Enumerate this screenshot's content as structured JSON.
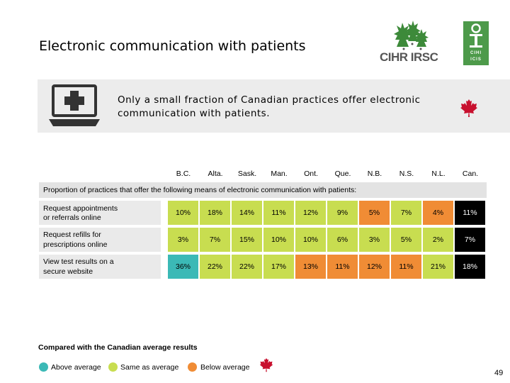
{
  "slide": {
    "title": "Electronic communication with patients",
    "banner_text": "Only a small fraction of Canadian practices offer electronic communication with patients.",
    "page_number": "49"
  },
  "logos": {
    "cihr": "CIHR IRSC",
    "cihi_top": "CIHI",
    "cihi_bottom": "ICIS"
  },
  "table": {
    "columns": [
      "B.C.",
      "Alta.",
      "Sask.",
      "Man.",
      "Ont.",
      "Que.",
      "N.B.",
      "N.S.",
      "N.L.",
      "Can."
    ],
    "section_label": "Proportion of practices that offer the following means of electronic communication with patients:",
    "rows": [
      {
        "label_line1": "Request appointments",
        "label_line2": "or referrals online",
        "values": [
          "10%",
          "18%",
          "14%",
          "11%",
          "12%",
          "9%",
          "5%",
          "7%",
          "4%",
          "11%"
        ],
        "status": [
          "same",
          "same",
          "same",
          "same",
          "same",
          "same",
          "below",
          "same",
          "below",
          "canada"
        ]
      },
      {
        "label_line1": "Request refills for",
        "label_line2": "prescriptions online",
        "values": [
          "3%",
          "7%",
          "15%",
          "10%",
          "10%",
          "6%",
          "3%",
          "5%",
          "2%",
          "7%"
        ],
        "status": [
          "same",
          "same",
          "same",
          "same",
          "same",
          "same",
          "same",
          "same",
          "same",
          "canada"
        ]
      },
      {
        "label_line1": "View test results on a",
        "label_line2": "secure website",
        "values": [
          "36%",
          "22%",
          "22%",
          "17%",
          "13%",
          "11%",
          "12%",
          "11%",
          "21%",
          "18%"
        ],
        "status": [
          "above",
          "same",
          "same",
          "same",
          "below",
          "below",
          "below",
          "below",
          "same",
          "canada"
        ]
      }
    ]
  },
  "legend": {
    "title": "Compared with the Canadian average results",
    "above": "Above average",
    "same": "Same as average",
    "below": "Below average"
  },
  "colors": {
    "above": "#3bb9b6",
    "same": "#c8dd50",
    "below": "#f08c35",
    "canada": "#000000",
    "maple": "#c8102e",
    "cihi_green": "#4d9a4a"
  }
}
